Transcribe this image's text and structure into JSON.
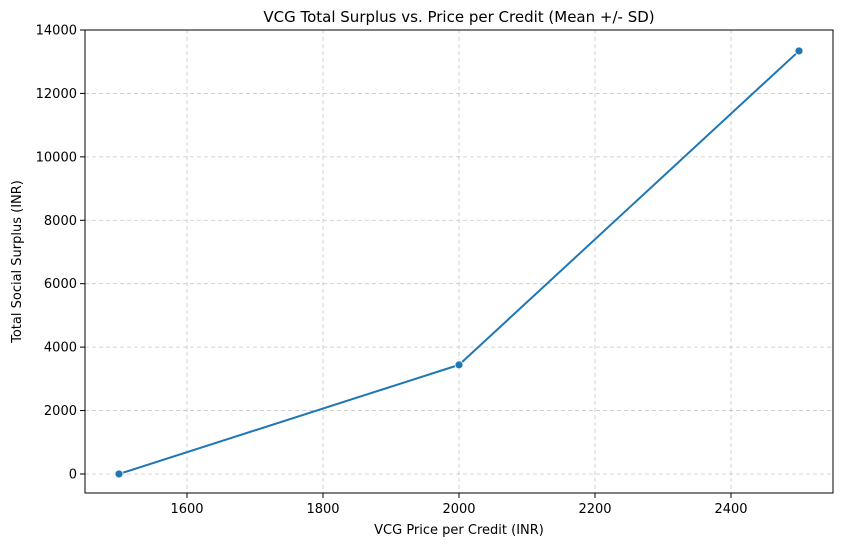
{
  "chart_data": {
    "type": "line",
    "title": "VCG Total Surplus vs. Price per Credit (Mean +/- SD)",
    "xlabel": "VCG Price per Credit (INR)",
    "ylabel": "Total Social Surplus (INR)",
    "xlim": [
      1450,
      2550
    ],
    "ylim": [
      -600,
      14000
    ],
    "xticks": [
      1600,
      1800,
      2000,
      2200,
      2400
    ],
    "yticks": [
      0,
      2000,
      4000,
      6000,
      8000,
      10000,
      12000,
      14000
    ],
    "grid": true,
    "grid_style": "dashed",
    "series": [
      {
        "x": [
          1500,
          2000,
          2500
        ],
        "values": [
          0,
          3440,
          13340
        ],
        "color": "#1f77b4",
        "marker": "circle"
      }
    ]
  }
}
